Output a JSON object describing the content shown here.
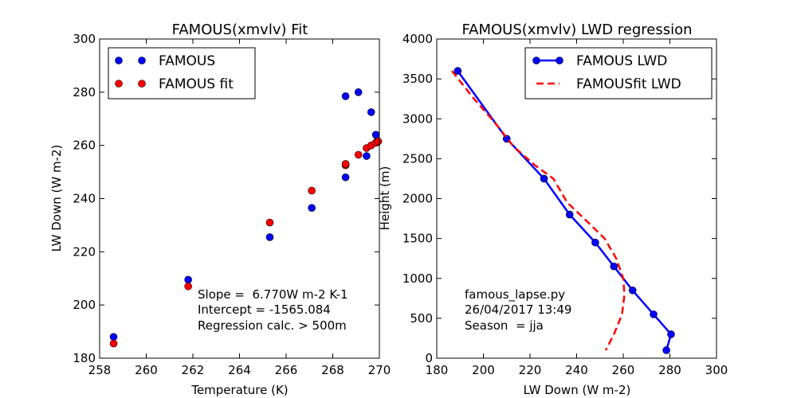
{
  "chart_data": [
    {
      "type": "scatter",
      "title": "FAMOUS(xmvlv) Fit",
      "xlabel": "Temperature (K)",
      "ylabel": "LW Down (W m-2)",
      "xlim": [
        258,
        270
      ],
      "ylim": [
        180,
        300
      ],
      "xticks": [
        258,
        260,
        262,
        264,
        266,
        268,
        270
      ],
      "yticks": [
        180,
        200,
        220,
        240,
        260,
        280,
        300
      ],
      "legend_position": "top-left",
      "series": [
        {
          "name": "FAMOUS",
          "color": "#0000ff",
          "points": [
            {
              "x": 258.6,
              "y": 188
            },
            {
              "x": 261.8,
              "y": 209.5
            },
            {
              "x": 265.3,
              "y": 225.5
            },
            {
              "x": 267.1,
              "y": 236.5
            },
            {
              "x": 268.55,
              "y": 248
            },
            {
              "x": 268.55,
              "y": 253
            },
            {
              "x": 268.55,
              "y": 278.5
            },
            {
              "x": 269.1,
              "y": 280
            },
            {
              "x": 269.45,
              "y": 256
            },
            {
              "x": 269.65,
              "y": 272.5
            },
            {
              "x": 269.85,
              "y": 264
            },
            {
              "x": 269.9,
              "y": 261.5
            }
          ]
        },
        {
          "name": "FAMOUS fit",
          "color": "#ff0000",
          "points": [
            {
              "x": 258.6,
              "y": 185.5
            },
            {
              "x": 261.8,
              "y": 207
            },
            {
              "x": 265.3,
              "y": 231
            },
            {
              "x": 267.1,
              "y": 243
            },
            {
              "x": 268.55,
              "y": 252.5
            },
            {
              "x": 268.55,
              "y": 253
            },
            {
              "x": 269.1,
              "y": 256.5
            },
            {
              "x": 269.45,
              "y": 259
            },
            {
              "x": 269.65,
              "y": 260
            },
            {
              "x": 269.85,
              "y": 261
            },
            {
              "x": 269.95,
              "y": 261.5
            }
          ]
        }
      ],
      "annotation": [
        "Slope =  6.770W m-2 K-1",
        "Intercept = -1565.084",
        "Regression calc. > 500m"
      ]
    },
    {
      "type": "line",
      "title": "FAMOUS(xmvlv) LWD regression",
      "xlabel": "LW Down (W m-2)",
      "ylabel": "Height (m)",
      "xlim": [
        180,
        300
      ],
      "ylim": [
        0,
        4000
      ],
      "xticks": [
        180,
        200,
        220,
        240,
        260,
        280,
        300
      ],
      "yticks": [
        0,
        500,
        1000,
        1500,
        2000,
        2500,
        3000,
        3500,
        4000
      ],
      "legend_position": "top-right",
      "series": [
        {
          "name": "FAMOUS LWD",
          "color": "#0000ff",
          "style": "solid-markers",
          "points": [
            {
              "x": 189,
              "y": 3600
            },
            {
              "x": 210,
              "y": 2750
            },
            {
              "x": 226,
              "y": 2250
            },
            {
              "x": 237,
              "y": 1800
            },
            {
              "x": 248,
              "y": 1450
            },
            {
              "x": 256,
              "y": 1150
            },
            {
              "x": 264,
              "y": 850
            },
            {
              "x": 273,
              "y": 550
            },
            {
              "x": 280.5,
              "y": 300
            },
            {
              "x": 278.5,
              "y": 100
            }
          ]
        },
        {
          "name": "FAMOUSfit LWD",
          "color": "#ff0000",
          "style": "dashed",
          "points": [
            {
              "x": 186.5,
              "y": 3600
            },
            {
              "x": 196,
              "y": 3250
            },
            {
              "x": 205,
              "y": 2950
            },
            {
              "x": 213,
              "y": 2650
            },
            {
              "x": 222,
              "y": 2420
            },
            {
              "x": 230,
              "y": 2250
            },
            {
              "x": 236,
              "y": 1950
            },
            {
              "x": 245,
              "y": 1700
            },
            {
              "x": 252,
              "y": 1500
            },
            {
              "x": 257,
              "y": 1250
            },
            {
              "x": 260,
              "y": 1000
            },
            {
              "x": 260.5,
              "y": 800
            },
            {
              "x": 259.5,
              "y": 550
            },
            {
              "x": 256,
              "y": 300
            },
            {
              "x": 252.5,
              "y": 100
            }
          ]
        }
      ],
      "annotation": [
        "famous_lapse.py",
        "26/04/2017 13:49",
        "Season  = jja"
      ]
    }
  ]
}
